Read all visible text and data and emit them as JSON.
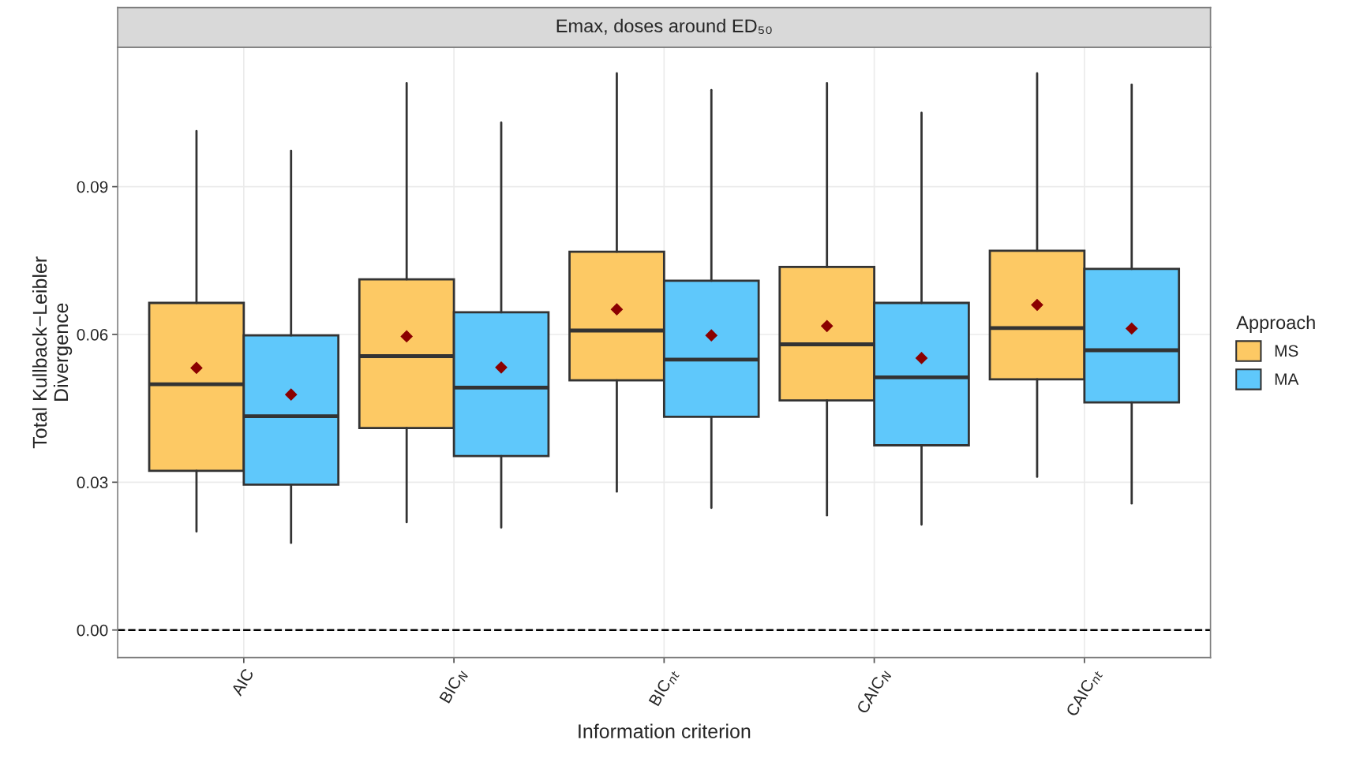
{
  "chart_data": {
    "type": "box",
    "title": "Emax, doses around ED₅₀",
    "xlabel": "Information criterion",
    "ylabel": "Total Kullback−Leibler\nDivergence",
    "legend_title": "Approach",
    "legend": "right",
    "categories": [
      "AIC",
      "BIC$_{N}$",
      "BIC$_{nt}$",
      "CAIC$_{N}$",
      "CAIC$_{nt}$"
    ],
    "series": [
      {
        "name": "MS",
        "color": "#fdc964",
        "boxes": [
          {
            "low": 0.02,
            "q1": 0.0323,
            "median": 0.0499,
            "q3": 0.0664,
            "high": 0.1013,
            "mean": 0.0532
          },
          {
            "low": 0.0219,
            "q1": 0.041,
            "median": 0.0556,
            "q3": 0.0712,
            "high": 0.111,
            "mean": 0.0596
          },
          {
            "low": 0.0281,
            "q1": 0.0507,
            "median": 0.0608,
            "q3": 0.0768,
            "high": 0.113,
            "mean": 0.0651
          },
          {
            "low": 0.0233,
            "q1": 0.0466,
            "median": 0.058,
            "q3": 0.0737,
            "high": 0.111,
            "mean": 0.0617
          },
          {
            "low": 0.0311,
            "q1": 0.0509,
            "median": 0.0613,
            "q3": 0.077,
            "high": 0.113,
            "mean": 0.066
          }
        ]
      },
      {
        "name": "MA",
        "color": "#5fc8fb",
        "boxes": [
          {
            "low": 0.0177,
            "q1": 0.0295,
            "median": 0.0434,
            "q3": 0.0598,
            "high": 0.0973,
            "mean": 0.0478
          },
          {
            "low": 0.0208,
            "q1": 0.0353,
            "median": 0.0492,
            "q3": 0.0645,
            "high": 0.103,
            "mean": 0.0533
          },
          {
            "low": 0.0248,
            "q1": 0.0433,
            "median": 0.0549,
            "q3": 0.0709,
            "high": 0.1096,
            "mean": 0.0598
          },
          {
            "low": 0.0214,
            "q1": 0.0375,
            "median": 0.0513,
            "q3": 0.0664,
            "high": 0.105,
            "mean": 0.0552
          },
          {
            "low": 0.0257,
            "q1": 0.0462,
            "median": 0.0568,
            "q3": 0.0733,
            "high": 0.1107,
            "mean": 0.0612
          }
        ]
      }
    ],
    "ylim": [
      -0.0056,
      0.1183
    ],
    "yticks": [
      {
        "value": 0,
        "label": "0.00"
      },
      {
        "value": 0.03,
        "label": "0.03"
      },
      {
        "value": 0.06,
        "label": "0.06"
      },
      {
        "value": 0.09,
        "label": "0.09"
      }
    ],
    "grid": true,
    "ref_lines": [
      {
        "axis": "y",
        "value": 0,
        "line_style": "dashed",
        "color": "#000000"
      }
    ]
  }
}
